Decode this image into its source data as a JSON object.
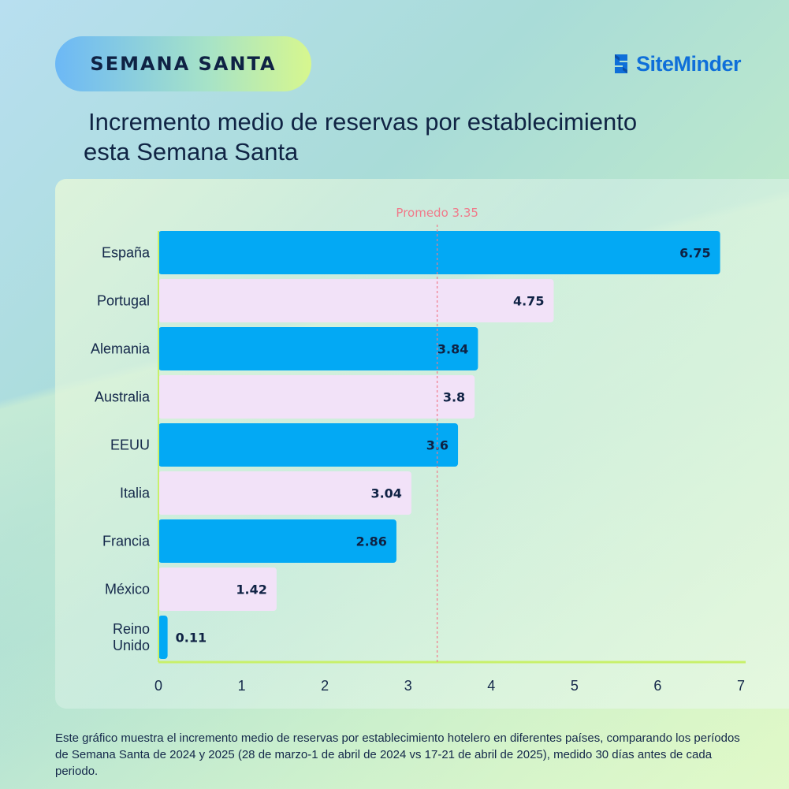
{
  "badge": {
    "label": "SEMANA SANTA"
  },
  "brand": {
    "name": "SiteMinder",
    "icon": "siteminder-logo-icon",
    "color": "#0f6fd9"
  },
  "title": {
    "line1": "Incremento medio de reservas por establecimiento",
    "line2": "esta Semana Santa"
  },
  "footnote": "Este gráfico muestra el incremento medio de reservas por establecimiento hotelero en diferentes países, comparando los períodos de Semana Santa de 2024 y 2025 (28 de marzo-1 de abril de 2024 vs 17-21 de abril de 2025), medido 30 días antes de cada periodo.",
  "chart_data": {
    "type": "bar",
    "orientation": "horizontal",
    "title": "",
    "xlabel": "",
    "ylabel": "",
    "xlim": [
      0,
      7
    ],
    "ticks": [
      0,
      1,
      2,
      3,
      4,
      5,
      6,
      7
    ],
    "grid": false,
    "categories": [
      [
        "España"
      ],
      [
        "Portugal"
      ],
      [
        "Alemania"
      ],
      [
        "Australia"
      ],
      [
        "EEUU"
      ],
      [
        "Italia"
      ],
      [
        "Francia"
      ],
      [
        "México"
      ],
      [
        "Reino",
        "Unido"
      ]
    ],
    "values": [
      6.75,
      4.75,
      3.84,
      3.8,
      3.6,
      3.04,
      2.86,
      1.42,
      0.11
    ],
    "value_labels": [
      "6.75",
      "4.75",
      "3.84",
      "3.8",
      "3.6",
      "3.04",
      "2.86",
      "1.42",
      "0.11"
    ],
    "bar_colors": [
      "#03a9f4",
      "#f2e2f8",
      "#03a9f4",
      "#f2e2f8",
      "#03a9f4",
      "#f2e2f8",
      "#03a9f4",
      "#f2e2f8",
      "#03a9f4"
    ],
    "reference_line": {
      "label": "Promedo 3.35",
      "value": 3.35,
      "color": "#f07a8a"
    },
    "axis_color": "#c8f06a"
  }
}
